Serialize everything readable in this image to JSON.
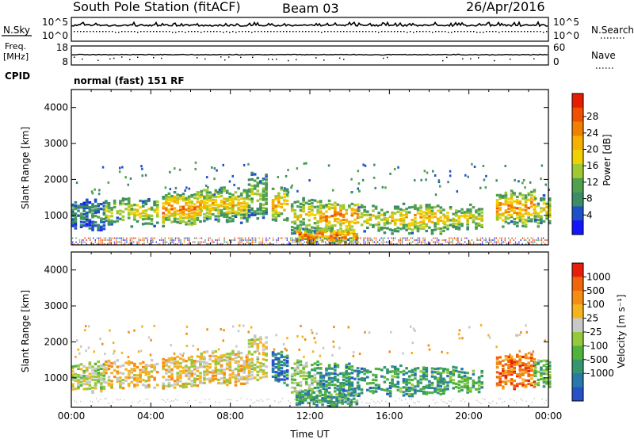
{
  "header": {
    "station": "South Pole Station (fitACF)",
    "beam": "Beam 03",
    "date": "26/Apr/2016"
  },
  "panels": {
    "nsky": {
      "label": "N.Sky",
      "right_label": "N.Search",
      "left_ticks": [
        "10^5",
        "10^0"
      ],
      "right_ticks": [
        "10^5",
        "10^0"
      ]
    },
    "freq": {
      "label_line1": "Freq.",
      "label_line2": "[MHz]",
      "right_label": "Nave",
      "left_ticks": [
        "18",
        "8"
      ],
      "right_ticks": [
        "60",
        "0"
      ]
    },
    "cpid": {
      "label": "CPID",
      "value": "normal (fast) 151 RF"
    }
  },
  "chart_data": [
    {
      "type": "heatmap",
      "title": "",
      "ylabel": "Slant Range [km]",
      "xlabel": "",
      "x_range": [
        "00:00",
        "00:00"
      ],
      "ylim": [
        180,
        4500
      ],
      "y_ticks": [
        "1000",
        "2000",
        "3000",
        "4000"
      ],
      "colorbar": {
        "label": "Power [dB]",
        "ticks": [
          "4",
          "8",
          "12",
          "16",
          "20",
          "24",
          "28"
        ],
        "colors": [
          "#1414ff",
          "#1e50c8",
          "#3c8c64",
          "#50a050",
          "#a0c832",
          "#f0d000",
          "#f5b000",
          "#f08000",
          "#f05000",
          "#e61e00"
        ]
      }
    },
    {
      "type": "heatmap",
      "title": "",
      "ylabel": "Slant Range [km]",
      "xlabel": "Time UT",
      "x_ticks": [
        "00:00",
        "04:00",
        "08:00",
        "12:00",
        "16:00",
        "20:00",
        "00:00"
      ],
      "ylim": [
        180,
        4500
      ],
      "y_ticks": [
        "1000",
        "2000",
        "3000",
        "4000"
      ],
      "colorbar": {
        "label": "Velocity [m s⁻¹]",
        "ticks": [
          "1000",
          "500",
          "100",
          "25",
          "-25",
          "-100",
          "-500",
          "-1000"
        ],
        "colors": [
          "#2850c8",
          "#2878aa",
          "#32966e",
          "#50b43c",
          "#96c83c",
          "#c8c8c8",
          "#f5b41e",
          "#f58c14",
          "#f0640a",
          "#e61e0a"
        ]
      }
    }
  ]
}
